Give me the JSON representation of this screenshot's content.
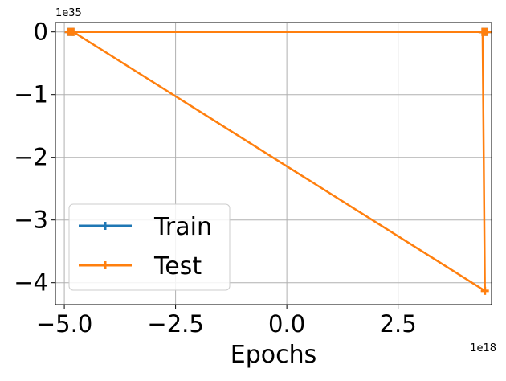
{
  "chart_data": {
    "type": "line",
    "xlabel": "Epochs",
    "ylabel": "",
    "x_offset_label": "1e18",
    "y_offset_label": "1e35",
    "xlim": [
      -5.2,
      4.6
    ],
    "ylim": [
      -4.35,
      0.15
    ],
    "x_ticks": [
      -5.0,
      -2.5,
      0.0,
      2.5
    ],
    "x_tick_labels": [
      "−5.0",
      "−2.5",
      "0.0",
      "2.5"
    ],
    "y_ticks": [
      0,
      -1,
      -2,
      -3,
      -4
    ],
    "y_tick_labels": [
      "0",
      "−1",
      "−2",
      "−3",
      "−4"
    ],
    "grid": true,
    "legend_position": "lower-left",
    "series": [
      {
        "name": "Train",
        "color": "#1f77b4",
        "marker": "plus",
        "x": [
          -4.9,
          -4.85,
          -4.8,
          4.4,
          4.45,
          4.5
        ],
        "y": [
          0,
          0,
          0,
          0,
          0,
          0
        ]
      },
      {
        "name": "Test",
        "color": "#ff7f0e",
        "marker": "plus",
        "x": [
          -4.9,
          -4.85,
          -4.8,
          4.4,
          4.45,
          4.5,
          4.4,
          4.45,
          -4.8
        ],
        "y": [
          0,
          0,
          0,
          0,
          0,
          0,
          0,
          -4.13,
          0
        ]
      }
    ]
  }
}
